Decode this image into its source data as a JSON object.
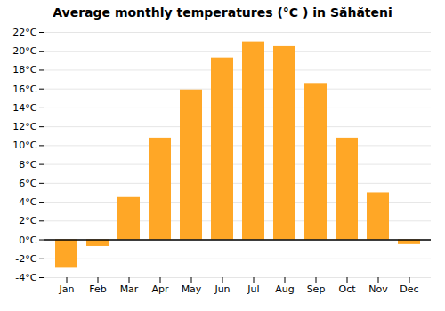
{
  "chart_data": {
    "type": "bar",
    "title": "Average monthly temperatures (°C ) in Săhăteni",
    "categories": [
      "Jan",
      "Feb",
      "Mar",
      "Apr",
      "May",
      "Jun",
      "Jul",
      "Aug",
      "Sep",
      "Oct",
      "Nov",
      "Dec"
    ],
    "values": [
      -3.0,
      -0.7,
      4.5,
      10.8,
      15.9,
      19.3,
      21.0,
      20.5,
      16.6,
      10.8,
      5.0,
      -0.5
    ],
    "color": "#FFA726",
    "ylim": [
      -4,
      22
    ],
    "yticks": [
      {
        "value": -4,
        "label": "-4°C"
      },
      {
        "value": -2,
        "label": "-2°C"
      },
      {
        "value": 0,
        "label": "0°C"
      },
      {
        "value": 2,
        "label": "2°C"
      },
      {
        "value": 4,
        "label": "4°C"
      },
      {
        "value": 6,
        "label": "6°C"
      },
      {
        "value": 8,
        "label": "8°C"
      },
      {
        "value": 10,
        "label": "10°C"
      },
      {
        "value": 12,
        "label": "12°C"
      },
      {
        "value": 14,
        "label": "14°C"
      },
      {
        "value": 16,
        "label": "16°C"
      },
      {
        "value": 18,
        "label": "18°C"
      },
      {
        "value": 20,
        "label": "20°C"
      },
      {
        "value": 22,
        "label": "22°C"
      }
    ],
    "grid": true
  }
}
